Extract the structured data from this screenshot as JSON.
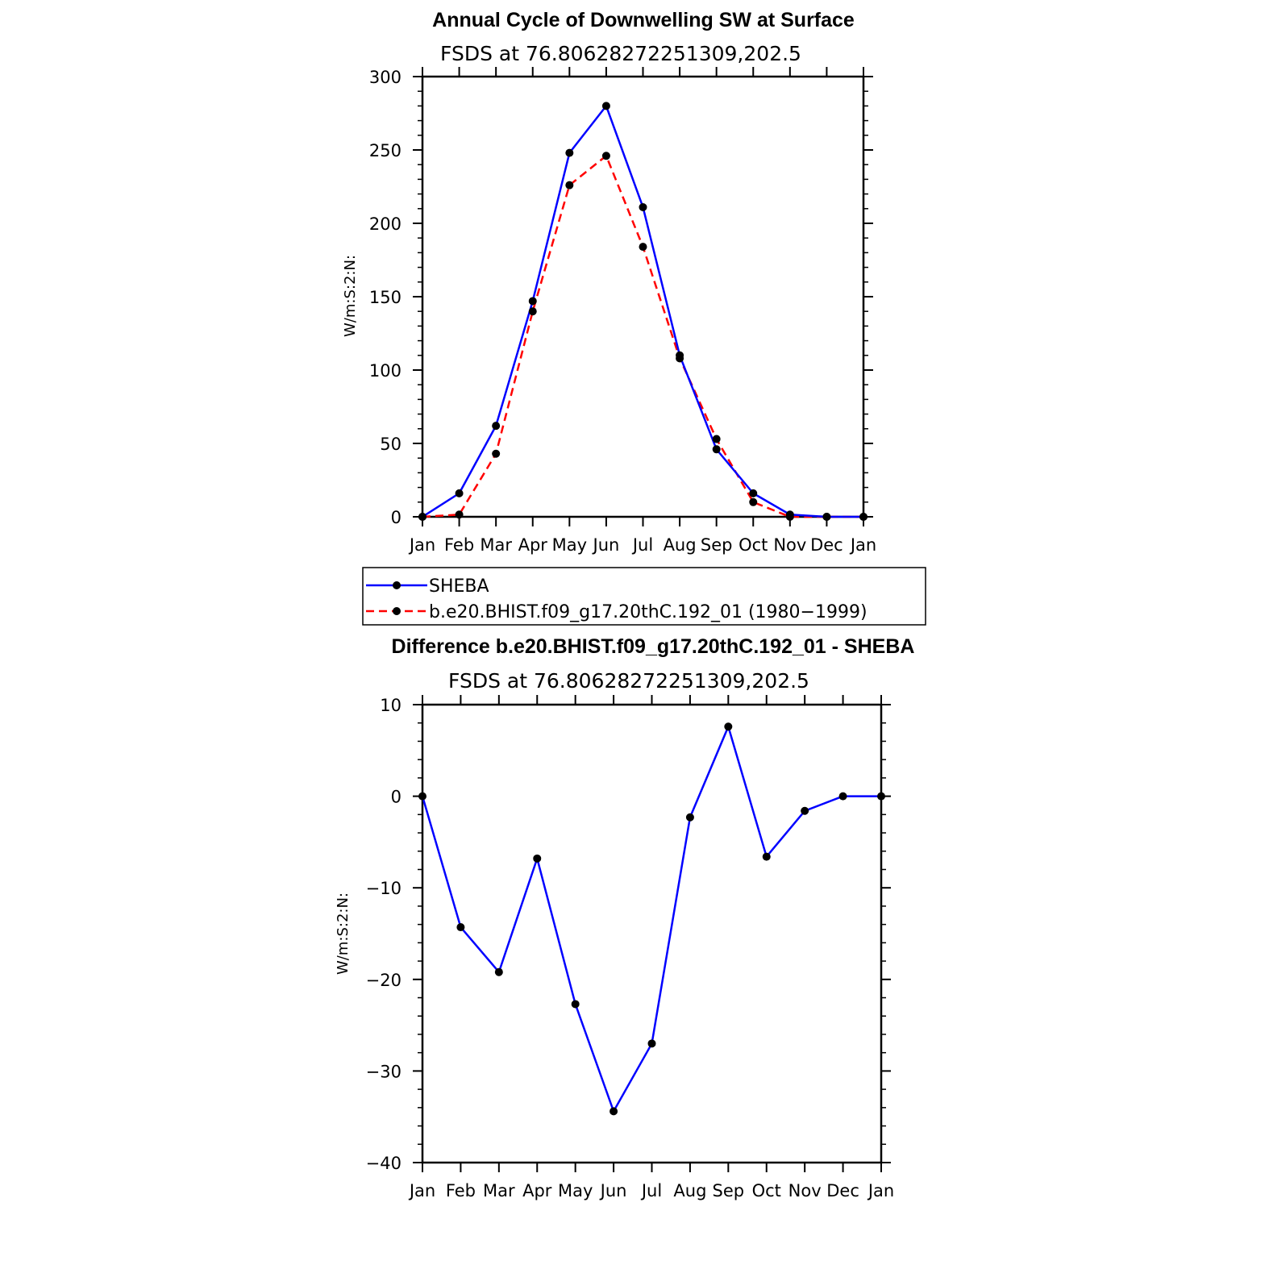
{
  "chart_data": [
    {
      "type": "line",
      "title": "Annual Cycle of Downwelling SW at Surface",
      "subtitle": "FSDS at 76.80628272251309,202.5",
      "xlabel": "",
      "ylabel": "W/m:S:2:N:",
      "categories": [
        "Jan",
        "Feb",
        "Mar",
        "Apr",
        "May",
        "Jun",
        "Jul",
        "Aug",
        "Sep",
        "Oct",
        "Nov",
        "Dec",
        "Jan"
      ],
      "ylim": [
        0,
        300
      ],
      "yticks": [
        0,
        50,
        100,
        150,
        200,
        250,
        300
      ],
      "grid": false,
      "series": [
        {
          "name": "SHEBA",
          "color": "#0000ff",
          "dash": "solid",
          "values": [
            0,
            16,
            62,
            147,
            248,
            280,
            211,
            110,
            46,
            16,
            1.5,
            0,
            0
          ]
        },
        {
          "name": "b.e20.BHIST.f09_g17.20thC.192_01 (1980−1999)",
          "color": "#ff0000",
          "dash": "dashed",
          "values": [
            0,
            1.5,
            43,
            140,
            226,
            246,
            184,
            108,
            53,
            10,
            0,
            0,
            0
          ]
        }
      ],
      "legend": "below"
    },
    {
      "type": "line",
      "title": "Difference b.e20.BHIST.f09_g17.20thC.192_01 - SHEBA",
      "subtitle": "FSDS at 76.80628272251309,202.5",
      "xlabel": "",
      "ylabel": "W/m:S:2:N:",
      "categories": [
        "Jan",
        "Feb",
        "Mar",
        "Apr",
        "May",
        "Jun",
        "Jul",
        "Aug",
        "Sep",
        "Oct",
        "Nov",
        "Dec",
        "Jan"
      ],
      "ylim": [
        -40,
        10
      ],
      "yticks": [
        -40,
        -30,
        -20,
        -10,
        0,
        10
      ],
      "ytick_labels": [
        "−40",
        "−30",
        "−20",
        "−10",
        "0",
        "10"
      ],
      "grid": false,
      "series": [
        {
          "color": "#0000ff",
          "dash": "solid",
          "values": [
            0,
            -14.3,
            -19.2,
            -6.8,
            -22.7,
            -34.4,
            -27,
            -2.3,
            7.6,
            -6.6,
            -1.6,
            0,
            0
          ]
        }
      ]
    }
  ],
  "colors": {
    "marker": "#000000",
    "axis": "#000000"
  }
}
